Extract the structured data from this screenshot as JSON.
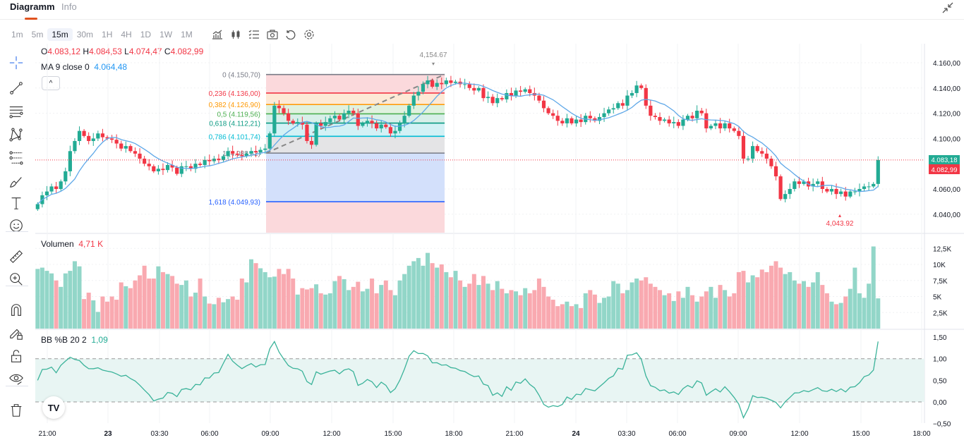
{
  "tabs": [
    {
      "label": "Diagramm",
      "active": true
    },
    {
      "label": "Info",
      "active": false
    }
  ],
  "toolbar": {
    "intervals": [
      {
        "label": "1m"
      },
      {
        "label": "5m"
      },
      {
        "label": "15m",
        "active": true
      },
      {
        "label": "30m"
      },
      {
        "label": "1H"
      },
      {
        "label": "4H"
      },
      {
        "label": "1D"
      },
      {
        "label": "1W"
      },
      {
        "label": "1M"
      }
    ],
    "icons": [
      "indicators-icon",
      "candle-type-icon",
      "watchlist-icon",
      "screenshot-icon",
      "undo-icon",
      "settings-icon"
    ]
  },
  "left_tools": [
    "crosshair-icon",
    "trendline-icon",
    "horizontal-lines-icon",
    "pattern-icon",
    "fib-icon",
    "brush-icon",
    "text-icon",
    "emoji-icon",
    "ruler-icon",
    "zoom-in-icon",
    "magnet-icon",
    "lock-drawing-icon",
    "unlock-icon",
    "eye-icon",
    "trash-icon"
  ],
  "legend": {
    "o_label": "O",
    "o": "4.083,12",
    "h_label": "H",
    "h": "4.084,53",
    "l_label": "L",
    "l": "4.074,47",
    "c_label": "C",
    "c": "4.082,99",
    "ma_label": "MA 9 close 0",
    "ma_value": "4.064,48",
    "volume_label": "Volumen",
    "volume_value": "4,71 K",
    "bb_label": "BB %B 20 2",
    "bb_value": "1,09"
  },
  "colors": {
    "up": "#22ab94",
    "down": "#f23645",
    "ma": "#5fa8e8",
    "bb": "#3bb39a",
    "accent": "#e0521f"
  },
  "chart_data": {
    "type": "candlestick",
    "interval": "15m",
    "price_axis": {
      "ticks": [
        "4.160,00",
        "4.140,00",
        "4.120,00",
        "4.100,00",
        "4.060,00",
        "4.040,00"
      ],
      "range": [
        4030,
        4170
      ]
    },
    "price_labels": {
      "last": "4.083,18",
      "close": "4.082,99"
    },
    "volume_axis": {
      "ticks": [
        "12,5K",
        "10K",
        "7,5K",
        "5K",
        "2,5K"
      ]
    },
    "bb_axis": {
      "ticks": [
        "1,50",
        "1,00",
        "0,50",
        "0,00",
        "−0,50"
      ],
      "range": [
        -0.6,
        1.7
      ]
    },
    "time_axis": [
      "21:00",
      "23",
      "03:30",
      "06:00",
      "09:00",
      "12:00",
      "15:00",
      "18:00",
      "21:00",
      "24",
      "03:30",
      "06:00",
      "09:00",
      "12:00",
      "15:00",
      "18:00"
    ],
    "high_marker": "4,154.67",
    "low_marker": "4,043.92",
    "fibonacci": [
      {
        "label": "0 (4.150,70)",
        "price": 4150.7,
        "color": "#787b86"
      },
      {
        "label": "0,236 (4.136,00)",
        "price": 4136.0,
        "color": "#f23645"
      },
      {
        "label": "0,382 (4.126,90)",
        "price": 4126.9,
        "color": "#ff9800"
      },
      {
        "label": "0,5 (4.119,56)",
        "price": 4119.56,
        "color": "#4caf50"
      },
      {
        "label": "0,618 (4.112,21)",
        "price": 4112.21,
        "color": "#089981"
      },
      {
        "label": "0,786 (4.101,74)",
        "price": 4101.74,
        "color": "#00bcd4"
      },
      {
        "label": "1 (4.088,42)",
        "price": 4088.42,
        "color": "#787b86"
      },
      {
        "label": "1,618 (4.049,93)",
        "price": 4049.93,
        "color": "#2962ff"
      }
    ],
    "closes": [
      4048,
      4055,
      4058,
      4062,
      4060,
      4066,
      4074,
      4090,
      4098,
      4106,
      4102,
      4098,
      4100,
      4104,
      4101,
      4100,
      4099,
      4096,
      4092,
      4094,
      4090,
      4088,
      4084,
      4080,
      4078,
      4074,
      4076,
      4075,
      4079,
      4077,
      4072,
      4078,
      4078,
      4076,
      4080,
      4079,
      4083,
      4082,
      4084,
      4083,
      4086,
      4090,
      4088,
      4087,
      4086,
      4088,
      4090,
      4089,
      4091,
      4092,
      4104,
      4126,
      4124,
      4120,
      4114,
      4112,
      4113,
      4111,
      4098,
      4095,
      4112,
      4110,
      4113,
      4116,
      4118,
      4115,
      4120,
      4122,
      4120,
      4110,
      4112,
      4114,
      4112,
      4108,
      4111,
      4109,
      4104,
      4106,
      4112,
      4118,
      4126,
      4134,
      4137,
      4143,
      4146,
      4141,
      4144,
      4143,
      4146,
      4144,
      4145,
      4143,
      4143,
      4140,
      4138,
      4140,
      4132,
      4133,
      4128,
      4132,
      4131,
      4136,
      4134,
      4138,
      4137,
      4139,
      4136,
      4134,
      4130,
      4124,
      4120,
      4118,
      4114,
      4112,
      4116,
      4112,
      4115,
      4113,
      4118,
      4116,
      4114,
      4117,
      4120,
      4123,
      4124,
      4128,
      4126,
      4134,
      4136,
      4142,
      4140,
      4126,
      4118,
      4117,
      4114,
      4115,
      4112,
      4113,
      4110,
      4115,
      4118,
      4116,
      4122,
      4120,
      4108,
      4110,
      4112,
      4108,
      4112,
      4108,
      4106,
      4102,
      4084,
      4084,
      4094,
      4090,
      4088,
      4084,
      4078,
      4070,
      4052,
      4056,
      4060,
      4066,
      4064,
      4066,
      4062,
      4064,
      4066,
      4060,
      4058,
      4060,
      4056,
      4058,
      4054,
      4058,
      4058,
      4060,
      4062,
      4062,
      4064,
      4083
    ],
    "volumes_k": [
      9.3,
      9.5,
      9,
      8.6,
      7.5,
      6.5,
      8.6,
      9,
      10.5,
      9.7,
      4.6,
      5.6,
      4.4,
      2.6,
      5,
      4.2,
      5,
      4.5,
      7.2,
      6.6,
      6.3,
      7.5,
      8.3,
      9.8,
      7.8,
      7.8,
      9.7,
      8.8,
      8.5,
      8.2,
      7,
      6.8,
      7.5,
      5,
      5.6,
      7.8,
      5,
      3.9,
      3.8,
      4.8,
      4.1,
      4.6,
      5,
      4.5,
      7.8,
      7.2,
      10.8,
      10.2,
      9.4,
      8.8,
      8,
      8.1,
      9.3,
      8.5,
      9.3,
      7.8,
      5.3,
      6.3,
      6.1,
      6.3,
      6.9,
      5.5,
      5.3,
      5.5,
      7.4,
      8.2,
      7.7,
      6,
      6.5,
      7.3,
      5.8,
      6.2,
      7.8,
      5.5,
      6.8,
      7.5,
      6.0,
      5.2,
      7.5,
      8.5,
      9.8,
      10.5,
      11.0,
      9.8,
      11.8,
      10.2,
      9.5,
      10.0,
      8.8,
      8.0,
      9.0,
      7.5,
      6.5,
      7.0,
      8.5,
      6.8,
      8.2,
      7.0,
      6.0,
      7.4,
      6.2,
      5.5,
      6.0,
      5.8,
      5.2,
      6.3,
      5.5,
      6.0,
      7.8,
      6.5,
      5.0,
      4.5,
      3.5,
      3.8,
      4.2,
      3.5,
      3.8,
      3.2,
      5.5,
      6.0,
      5.3,
      4.0,
      4.8,
      5.0,
      7.4,
      7.0,
      5.5,
      6.0,
      7.2,
      7.8,
      7.5,
      8.0,
      7.0,
      6.5,
      6.0,
      5.2,
      5.5,
      4.3,
      5.8,
      4.8,
      6.5,
      5.2,
      4.2,
      5.0,
      5.8,
      6.5,
      4.8,
      6.8,
      6.0,
      5.0,
      5.5,
      8.8,
      9.0,
      7.2,
      8.3,
      8.0,
      9.2,
      8.8,
      9.8,
      10.5,
      9.5,
      8.5,
      8.8,
      7.5,
      7.0,
      7.4,
      6.5,
      7.2,
      8.8,
      6.8,
      5.5,
      4.2,
      3.8,
      4.0,
      5.0,
      6.2,
      9.5,
      5.5,
      4.8,
      7.0,
      12.8,
      4.71
    ]
  }
}
